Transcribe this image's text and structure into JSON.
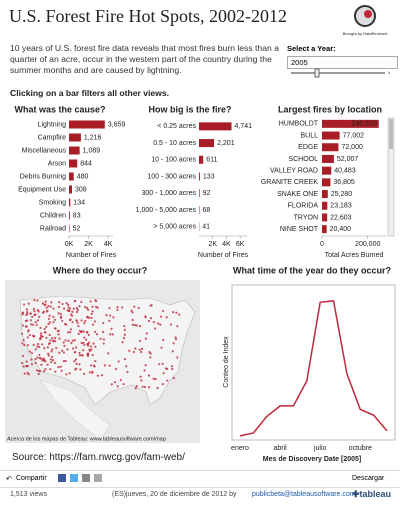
{
  "header": {
    "title": "U.S. Forest Fire Hot Spots, 2002-2012",
    "logo_caption": "Brought by DataRemixed",
    "description": "10 years of U.S. forest fire data reveals that most fires burn less than a quarter of an acre, occur in the western part of the country during the summer months and are caused by lightning.",
    "instruction": "Clicking on a bar filters all other views."
  },
  "year_filter": {
    "label": "Select a Year:",
    "value": "2005"
  },
  "chart_data": [
    {
      "type": "hbar",
      "title": "What was the cause?",
      "xlabel": "Number of Fires",
      "color": "#a91d27",
      "categories": [
        "Lightning",
        "Campfire",
        "Miscellaneous",
        "Arson",
        "Debris Burning",
        "Equipment Use",
        "Smoking",
        "Children",
        "Railroad"
      ],
      "values": [
        3659,
        1216,
        1089,
        844,
        480,
        308,
        134,
        83,
        52
      ],
      "value_labels": [
        "3,659",
        "1,216",
        "1,089",
        "844",
        "480",
        "308",
        "134",
        "83",
        "52"
      ],
      "xlim": [
        0,
        4500
      ],
      "xticks": [
        {
          "value": 0,
          "label": "0K"
        },
        {
          "value": 2000,
          "label": "2K"
        },
        {
          "value": 4000,
          "label": "4K"
        }
      ]
    },
    {
      "type": "hbar",
      "title": "How big is the fire?",
      "xlabel": "Number of Fires",
      "color": "#a91d27",
      "categories": [
        "< 0.25 acres",
        "0.5 - 10 acres",
        "10 - 100 acres",
        "100 - 300 acres",
        "300 - 1,000 acres",
        "1,000 - 5,000 acres",
        "> 5,000 acres"
      ],
      "values": [
        4741,
        2201,
        611,
        133,
        92,
        68,
        41
      ],
      "value_labels": [
        "4,741",
        "2,201",
        "611",
        "133",
        "92",
        "68",
        "41"
      ],
      "xlim": [
        0,
        7000
      ],
      "xticks": [
        {
          "value": 2000,
          "label": "2K"
        },
        {
          "value": 4000,
          "label": "4K"
        },
        {
          "value": 6000,
          "label": "6K"
        }
      ]
    },
    {
      "type": "hbar",
      "title": "Largest fires by location",
      "xlabel": "Total Acres Burned",
      "color": "#a91d27",
      "categories": [
        "HUMBOLDT",
        "BULL",
        "EDGE",
        "SCHOOL",
        "VALLEY ROAD",
        "GRANITE CREEK",
        "SNAKE ONE",
        "FLORIDA",
        "TRYON",
        "NINE SHOT"
      ],
      "values": [
        248310,
        77002,
        72000,
        52007,
        40483,
        36805,
        25280,
        23183,
        22603,
        20400
      ],
      "value_labels": [
        "248,310",
        "77,002",
        "72,000",
        "52,007",
        "40,483",
        "36,805",
        "25,280",
        "23,183",
        "22,603",
        "20,400"
      ],
      "xlim": [
        0,
        280000
      ],
      "xticks": [
        0,
        {
          "value": 200000,
          "label": "200,000"
        }
      ]
    },
    {
      "type": "map",
      "title": "Where do they occur?",
      "attribution": "Acerca de los mapas de Tableau: www.tableausoftware.com/map"
    },
    {
      "type": "line",
      "title": "What time of the year do they occur?",
      "xlabel": "Mes de Discovery Date [2005]",
      "ylabel": "Conteo de Index",
      "color": "#c0283a",
      "categories": [
        "enero",
        null,
        null,
        "abril",
        null,
        null,
        "julio",
        null,
        null,
        "octubre",
        null,
        null
      ],
      "values": [
        30,
        70,
        300,
        450,
        450,
        800,
        1900,
        1920,
        900,
        400,
        320,
        100
      ],
      "ylim": [
        0,
        2100
      ]
    }
  ],
  "source": "Source: https://fam.nwcg.gov/fam-web/",
  "toolbar": {
    "share": "Compartir",
    "download": "Descargar"
  },
  "footer": {
    "views": "1,513 views",
    "date": "(ES)jueves, 20 de diciembre de 2012 by",
    "email": "publicbeta@tableausoftware.com",
    "brand": "tableau"
  }
}
